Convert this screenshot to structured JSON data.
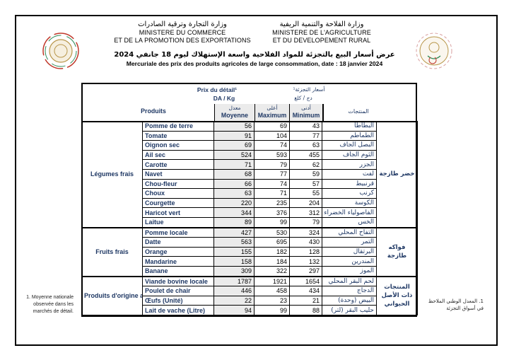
{
  "header": {
    "commerce": {
      "ar": "وزارة التجارة وترقية الصادرات",
      "fr_line1": "MINISTERE DU COMMERCE",
      "fr_line2": "ET DE LA PROMOTION DES EXPORTATIONS"
    },
    "agriculture": {
      "ar": "وزارة الفلاحة والتنمية الريفية",
      "fr_line1": "MINISTERE DE L'AGRICULTURE",
      "fr_line2": "ET DU DEVELOPEMENT RURAL"
    },
    "title_ar": "عرض أسعار البيع بالتجزئة للمواد الفلاحية واسعة الإستهلاك ليوم 18 جانفي 2024",
    "title_fr": "Mercuriale des prix des produits agricoles de  large consommation, date  : 18 janvier 2024"
  },
  "table": {
    "prix_label_fr": "Prix du détail¹",
    "unit_fr": "DA / Kg",
    "prix_label_ar": "أسعار التجزئة¹",
    "unit_ar": "دج / كلغ",
    "produits_fr": "Produits",
    "produits_ar": "المنتجات",
    "col_moyenne": {
      "ar": "معدل",
      "fr": "Moyenne"
    },
    "col_maximum": {
      "ar": "أعلى",
      "fr": "Maximum"
    },
    "col_minimum": {
      "ar": "أدنى",
      "fr": "Minimum"
    },
    "groups": [
      {
        "fr": "Légumes frais",
        "ar": "خضر طازجة",
        "rows": [
          {
            "fr": "Pomme de terre",
            "moy": "56",
            "max": "69",
            "min": "43",
            "ar": "البطاطا"
          },
          {
            "fr": "Tomate",
            "moy": "91",
            "max": "104",
            "min": "77",
            "ar": "الطماطم"
          },
          {
            "fr": "Oignon sec",
            "moy": "69",
            "max": "74",
            "min": "63",
            "ar": "البصل الجاف"
          },
          {
            "fr": "Ail sec",
            "moy": "524",
            "max": "593",
            "min": "455",
            "ar": "الثوم الجاف"
          },
          {
            "fr": "Carotte",
            "moy": "71",
            "max": "79",
            "min": "62",
            "ar": "الجزر"
          },
          {
            "fr": "Navet",
            "moy": "68",
            "max": "77",
            "min": "59",
            "ar": "لفت"
          },
          {
            "fr": "Chou-fleur",
            "moy": "66",
            "max": "74",
            "min": "57",
            "ar": "قرنبيط"
          },
          {
            "fr": "Choux",
            "moy": "63",
            "max": "71",
            "min": "55",
            "ar": "كرنب"
          },
          {
            "fr": "Courgette",
            "moy": "220",
            "max": "235",
            "min": "204",
            "ar": "الكوسة"
          },
          {
            "fr": "Haricot vert",
            "moy": "344",
            "max": "376",
            "min": "312",
            "ar": "الفاصولياء الخضراء"
          },
          {
            "fr": "Laitue",
            "moy": "89",
            "max": "99",
            "min": "79",
            "ar": "الخس"
          }
        ]
      },
      {
        "fr": "Fruits frais",
        "ar": "فواكه طازجة",
        "rows": [
          {
            "fr": "Pomme locale",
            "moy": "427",
            "max": "530",
            "min": "324",
            "ar": "التفاح المحلي"
          },
          {
            "fr": "Datte",
            "moy": "563",
            "max": "695",
            "min": "430",
            "ar": "التمر"
          },
          {
            "fr": "Orange",
            "moy": "155",
            "max": "182",
            "min": "128",
            "ar": "البرتقال"
          },
          {
            "fr": "Mandarine",
            "moy": "158",
            "max": "184",
            "min": "132",
            "ar": "المندرين"
          },
          {
            "fr": "Banane",
            "moy": "309",
            "max": "322",
            "min": "297",
            "ar": "الموز"
          }
        ]
      },
      {
        "fr": "Produits d'origine animale",
        "ar": "المنتجات ذات الأصل الحيواني",
        "rows": [
          {
            "fr": "Viande bovine locale",
            "moy": "1787",
            "max": "1921",
            "min": "1654",
            "ar": "لحم البقر المحلي"
          },
          {
            "fr": "Poulet de chair",
            "moy": "446",
            "max": "458",
            "min": "434",
            "ar": "الدجاج"
          },
          {
            "fr": "Œufs (Unité)",
            "moy": "22",
            "max": "23",
            "min": "21",
            "ar": "البيض (وحدة)"
          },
          {
            "fr": "Lait de vache (Litre)",
            "moy": "94",
            "max": "99",
            "min": "88",
            "ar": "حليب البقر (لتر)"
          }
        ]
      }
    ]
  },
  "footnotes": {
    "fr": "1. Moyenne nationale observée dans les marchés de détail.",
    "ar": "1. المعدل الوطني الملاحظ في أسواق التجزئة"
  },
  "colors": {
    "header_blue": "#1f3864",
    "moyenne_bg": "#ebebeb",
    "seal_red": "#c0392b",
    "seal_green": "#2e8b57",
    "seal_gold": "#b8964a"
  }
}
